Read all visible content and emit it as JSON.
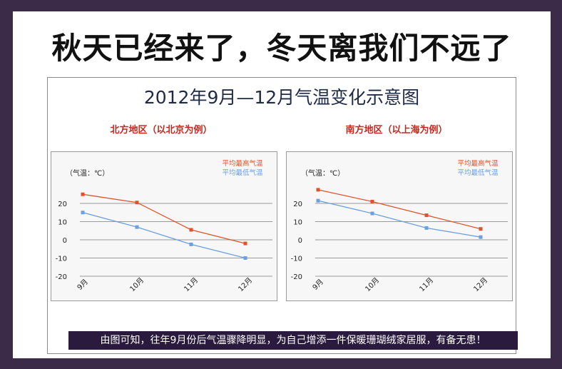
{
  "headline": "秋天已经来了，冬天离我们不远了",
  "main_title": "2012年9月—12月气温变化示意图",
  "footer_note": "由图可知，往年9月份后气温骤降明显，为自己增添一件保暖珊瑚绒家居服，有备无患！",
  "colors": {
    "high_series": "#e0522a",
    "low_series": "#6a9fe0",
    "region_title": "#c02a1e",
    "footer_bg": "#2a1a3d"
  },
  "chart_data": [
    {
      "type": "line",
      "title": "北方地区（以北京为例）",
      "ylabel": "（气温：℃）",
      "categories": [
        "9月",
        "10月",
        "11月",
        "12月"
      ],
      "y_ticks": [
        "20",
        "10",
        "0",
        "-10",
        "-20"
      ],
      "ylim": [
        -20,
        28
      ],
      "series": [
        {
          "name": "平均最高气温",
          "values": [
            25,
            20.5,
            5.5,
            -2
          ]
        },
        {
          "name": "平均最低气温",
          "values": [
            15,
            7,
            -2.5,
            -10
          ]
        }
      ]
    },
    {
      "type": "line",
      "title": "南方地区（以上海为例）",
      "ylabel": "（气温：℃）",
      "categories": [
        "9月",
        "10月",
        "11月",
        "12月"
      ],
      "y_ticks": [
        "20",
        "10",
        "0",
        "-10",
        "-20"
      ],
      "ylim": [
        -20,
        28
      ],
      "series": [
        {
          "name": "平均最高气温",
          "values": [
            27.5,
            21,
            13.5,
            6
          ]
        },
        {
          "name": "平均最低气温",
          "values": [
            21.5,
            14.5,
            6.5,
            1.5
          ]
        }
      ]
    }
  ]
}
